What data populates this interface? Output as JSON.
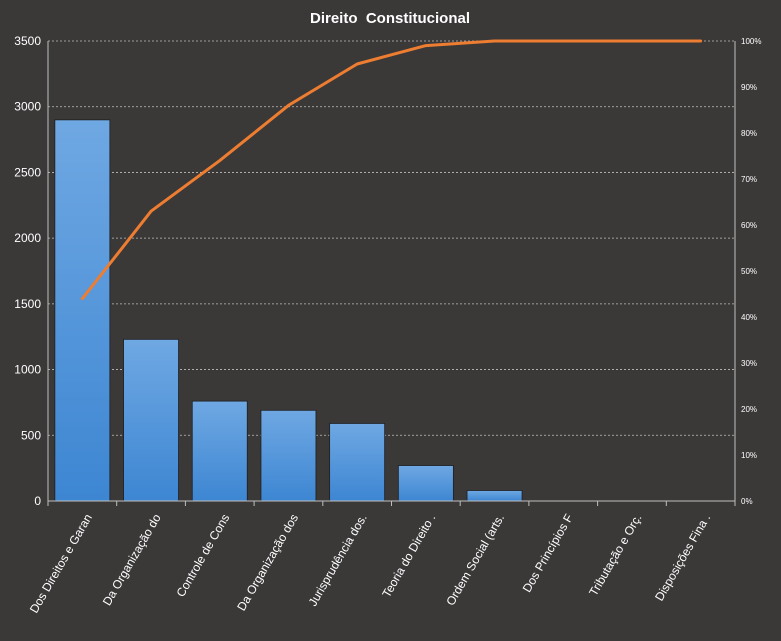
{
  "chart_data": {
    "type": "bar",
    "title": "Direito  Constitucional",
    "categories": [
      "Dos Direitos e Garan",
      "Da Organização do",
      "Controle de Cons",
      "Da Organização dos",
      "Jurisprudência dos.",
      "Teoria do Direito .",
      "Ordem Social (arts.",
      "Dos Princípios F",
      "Tributação e Orç.",
      "Disposições Fina ."
    ],
    "series": [
      {
        "type": "bar",
        "values": [
          2900,
          1230,
          760,
          690,
          590,
          270,
          80,
          0,
          0,
          0
        ]
      },
      {
        "type": "line",
        "axis": "right",
        "values": [
          44,
          63,
          74,
          86,
          95,
          99,
          100,
          100,
          100,
          100
        ]
      }
    ],
    "ylim": [
      0,
      3500
    ],
    "yticks": [
      "0",
      "500",
      "1000",
      "1500",
      "2000",
      "2500",
      "3000",
      "3500"
    ],
    "y2lim": [
      0,
      100
    ],
    "y2ticks": [
      "0%",
      "10%",
      "20%",
      "30%",
      "40%",
      "50%",
      "60%",
      "70%",
      "80%",
      "90%",
      "100%"
    ],
    "grid": true,
    "colors": {
      "background": "#3b3838",
      "bar": "#4a90d9",
      "line": "#ed7d31",
      "text": "#ffffff",
      "grid": "#bfbfbf"
    }
  }
}
